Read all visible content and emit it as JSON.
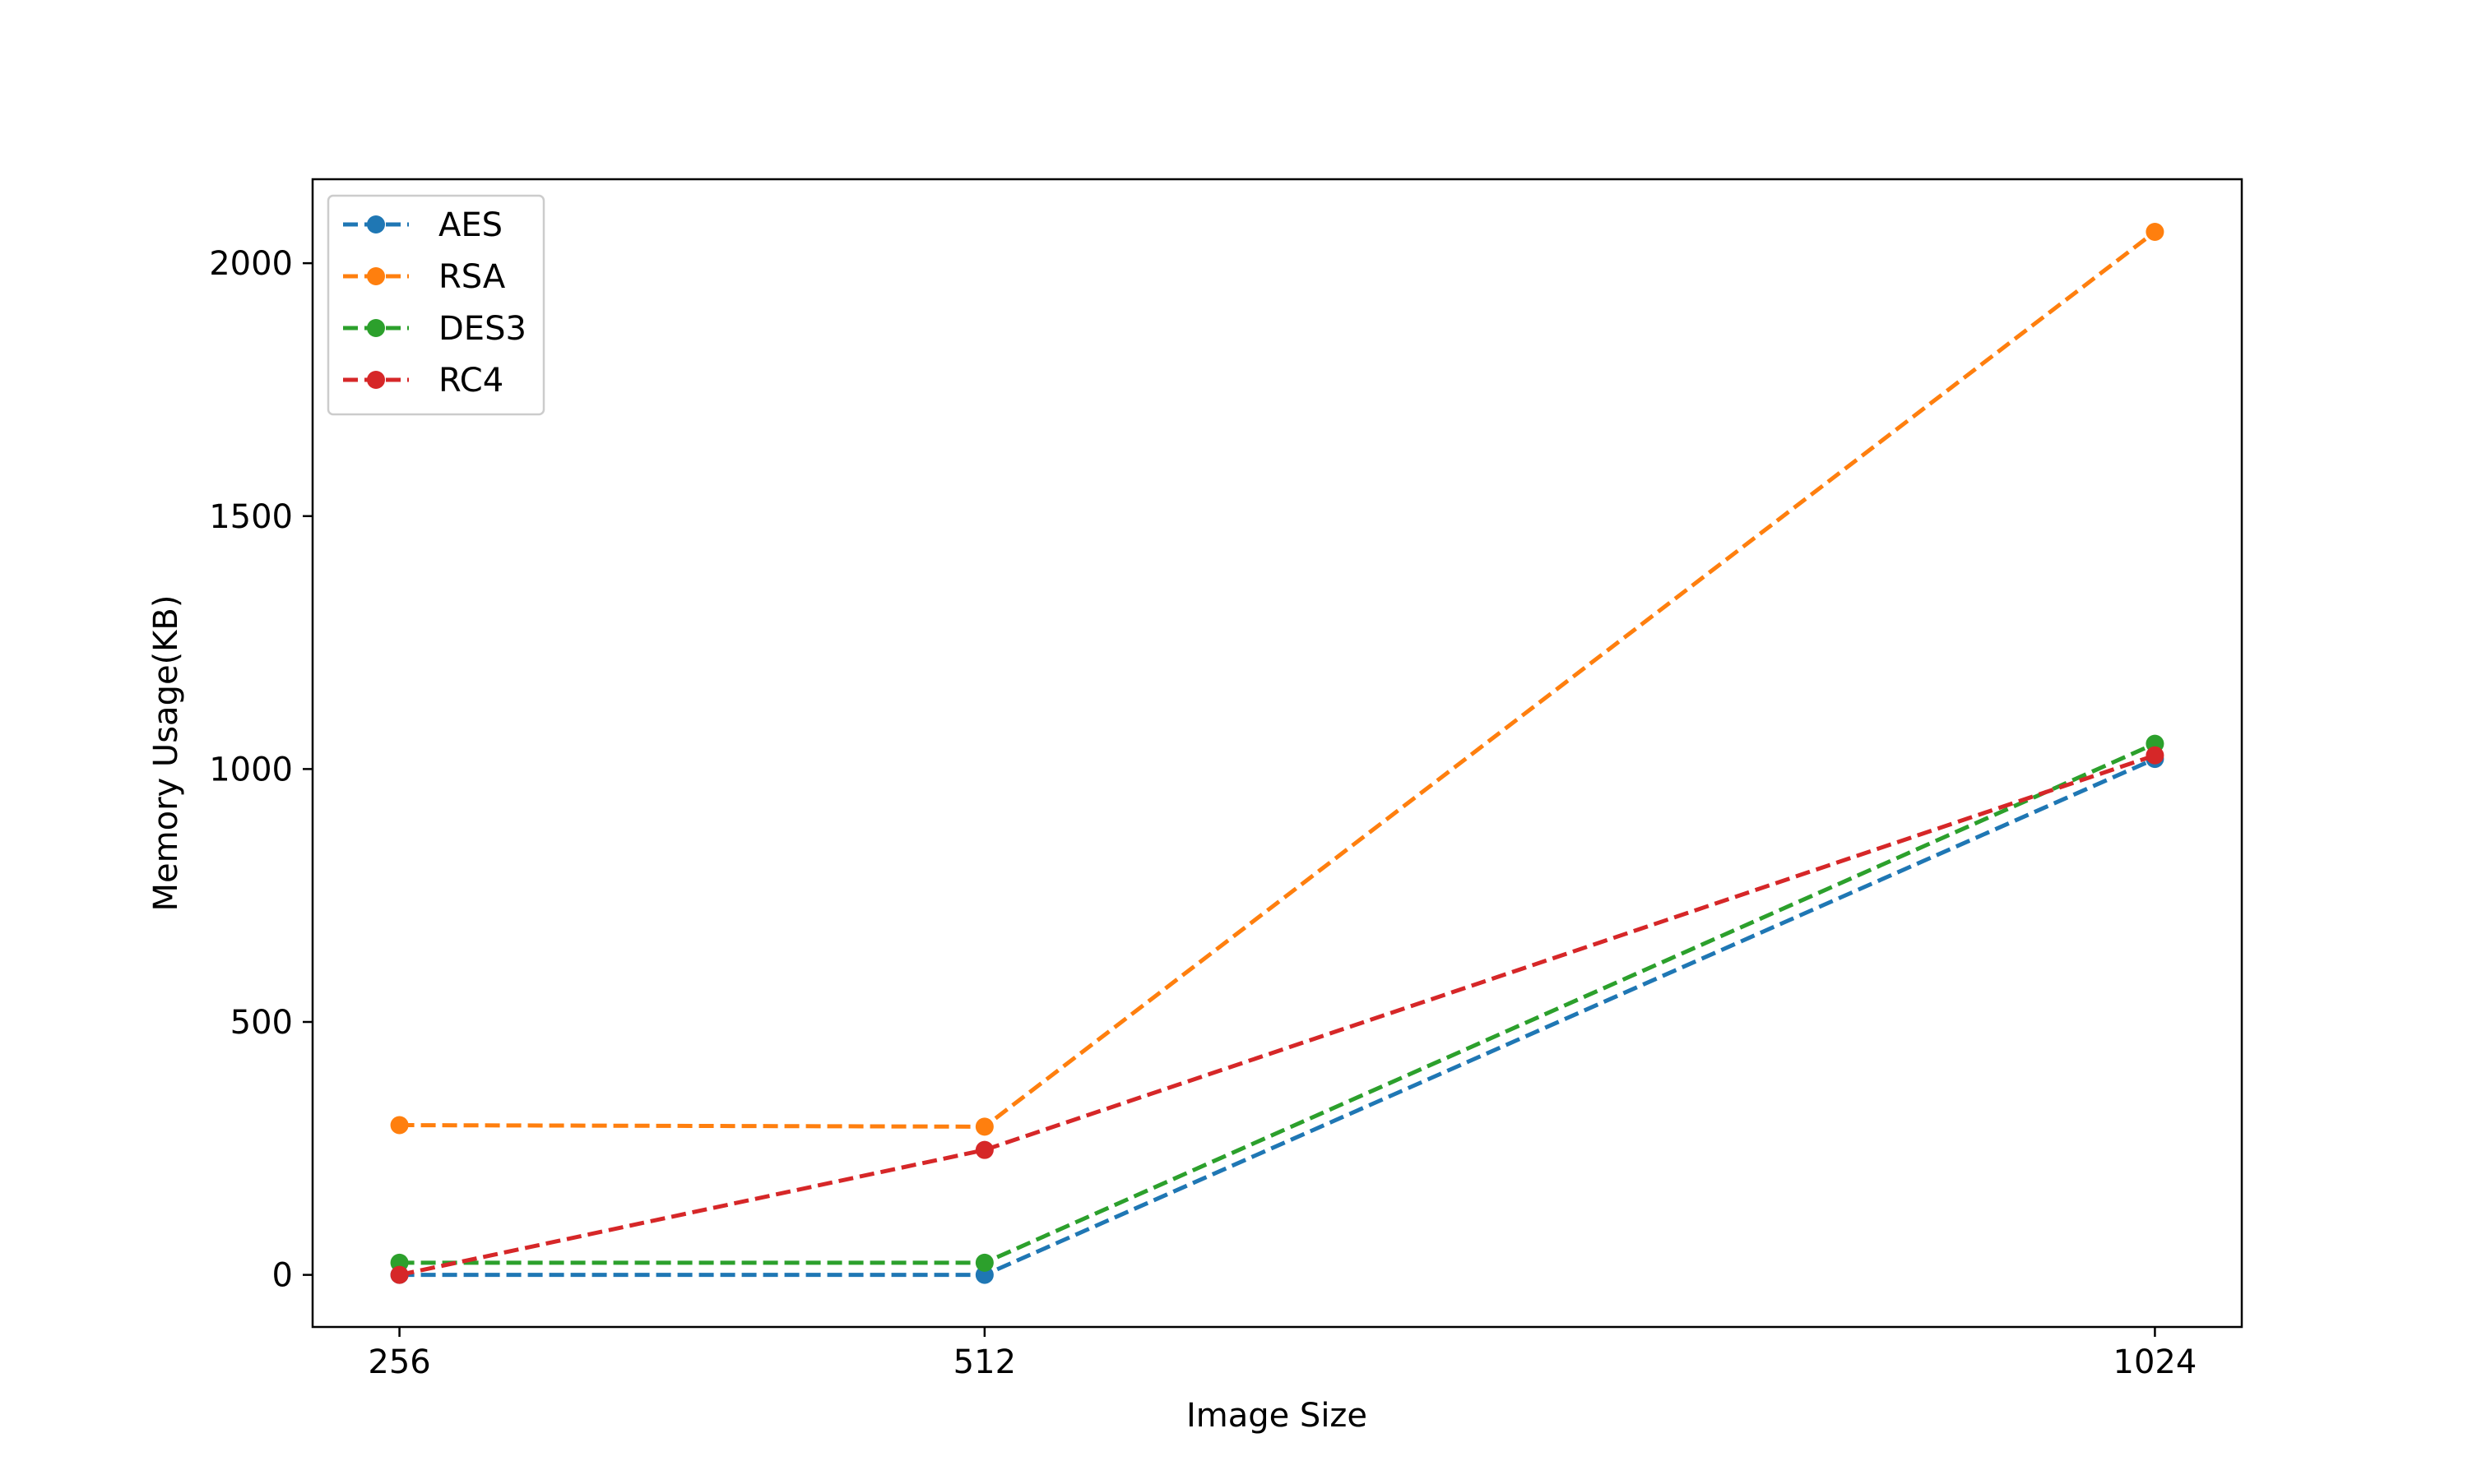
{
  "chart_data": {
    "type": "line",
    "title": "",
    "xlabel": "Image Size",
    "ylabel": "Memory Usage(KB)",
    "x": [
      256,
      512,
      1024
    ],
    "x_ticks": [
      "256",
      "512",
      "1024"
    ],
    "y_ticks": [
      "0",
      "500",
      "1000",
      "1500",
      "2000"
    ],
    "xlim": [
      218,
      1062
    ],
    "ylim": [
      -103,
      2166
    ],
    "grid": false,
    "legend_position": "top-left",
    "line_style": "dashed",
    "marker": "circle",
    "series": [
      {
        "name": "AES",
        "color": "#1f77b4",
        "values": [
          0,
          0,
          1020
        ]
      },
      {
        "name": "RSA",
        "color": "#ff7f0e",
        "values": [
          296,
          293,
          2062
        ]
      },
      {
        "name": "DES3",
        "color": "#2ca02c",
        "values": [
          24,
          24,
          1050
        ]
      },
      {
        "name": "RC4",
        "color": "#d62728",
        "values": [
          0,
          247,
          1027
        ]
      }
    ]
  }
}
